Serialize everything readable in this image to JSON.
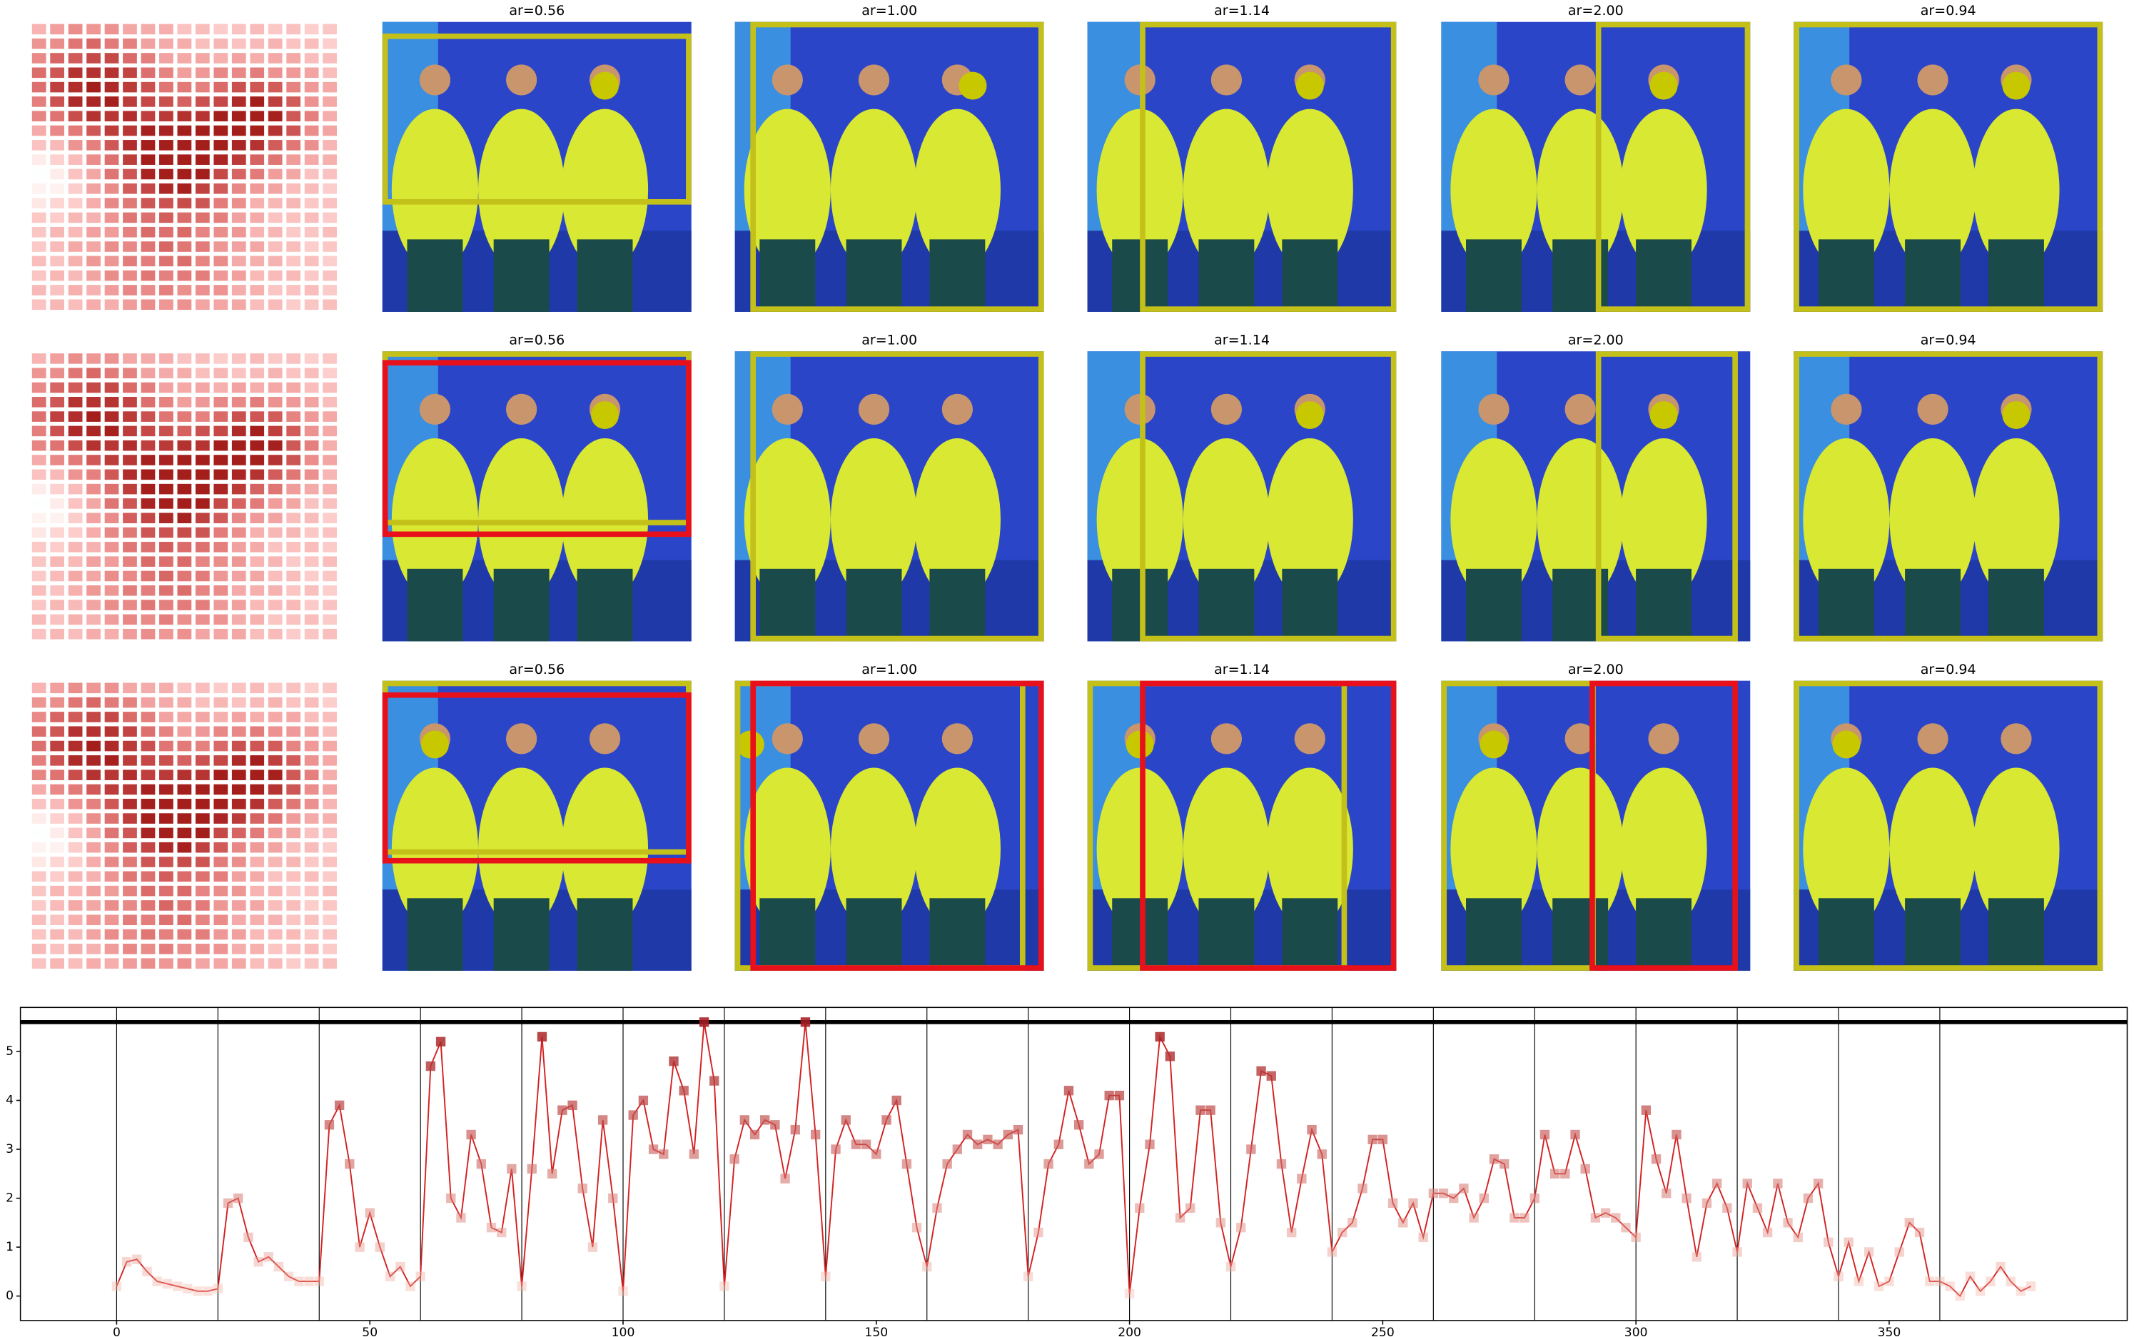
{
  "panels": {
    "titles": [
      [
        "ar=0.56",
        "ar=1.00",
        "ar=1.14",
        "ar=2.00",
        "ar=0.94"
      ],
      [
        "ar=0.56",
        "ar=1.00",
        "ar=1.14",
        "ar=2.00",
        "ar=0.94"
      ],
      [
        "ar=0.56",
        "ar=1.00",
        "ar=1.14",
        "ar=2.00",
        "ar=0.94"
      ]
    ]
  },
  "chart_data": {
    "type": "line",
    "color": "#d42020",
    "x": [
      0,
      2,
      4,
      6,
      8,
      10,
      12,
      14,
      16,
      18,
      20,
      22,
      24,
      26,
      28,
      30,
      32,
      34,
      36,
      38,
      40,
      42,
      44,
      46,
      48,
      50,
      52,
      54,
      56,
      58,
      60,
      62,
      64,
      66,
      68,
      70,
      72,
      74,
      76,
      78,
      80,
      82,
      84,
      86,
      88,
      90,
      92,
      94,
      96,
      98,
      100,
      102,
      104,
      106,
      108,
      110,
      112,
      114,
      116,
      118,
      120,
      122,
      124,
      126,
      128,
      130,
      132,
      134,
      136,
      138,
      140,
      142,
      144,
      146,
      148,
      150,
      152,
      154,
      156,
      158,
      160,
      162,
      164,
      166,
      168,
      170,
      172,
      174,
      176,
      178,
      180,
      182,
      184,
      186,
      188,
      190,
      192,
      194,
      196,
      198,
      200,
      202,
      204,
      206,
      208,
      210,
      212,
      214,
      216,
      218,
      220,
      222,
      224,
      226,
      228,
      230,
      232,
      234,
      236,
      238,
      240,
      242,
      244,
      246,
      248,
      250,
      252,
      254,
      256,
      258,
      260,
      262,
      264,
      266,
      268,
      270,
      272,
      274,
      276,
      278,
      280,
      282,
      284,
      286,
      288,
      290,
      292,
      294,
      296,
      298,
      300,
      302,
      304,
      306,
      308,
      310,
      312,
      314,
      316,
      318,
      320,
      322,
      324,
      326,
      328,
      330,
      332,
      334,
      336,
      338,
      340,
      342,
      344,
      346,
      348,
      350,
      352,
      354,
      356,
      358,
      360,
      362,
      364,
      366,
      368,
      370,
      372,
      374,
      376,
      378
    ],
    "values": [
      0.2,
      0.7,
      0.75,
      0.5,
      0.3,
      0.25,
      0.2,
      0.15,
      0.1,
      0.1,
      0.15,
      1.9,
      2.0,
      1.2,
      0.7,
      0.8,
      0.6,
      0.4,
      0.3,
      0.3,
      0.3,
      3.5,
      3.9,
      2.7,
      1.0,
      1.7,
      1.0,
      0.4,
      0.6,
      0.2,
      0.4,
      4.7,
      5.2,
      2.0,
      1.6,
      3.3,
      2.7,
      1.4,
      1.3,
      2.6,
      0.2,
      2.6,
      5.3,
      2.5,
      3.8,
      3.9,
      2.2,
      1.0,
      3.6,
      2.0,
      0.1,
      3.7,
      4.0,
      3.0,
      2.9,
      4.8,
      4.2,
      2.9,
      5.6,
      4.4,
      0.2,
      2.8,
      3.6,
      3.3,
      3.6,
      3.5,
      2.4,
      3.4,
      5.6,
      3.3,
      0.4,
      3.0,
      3.6,
      3.1,
      3.1,
      2.9,
      3.6,
      4.0,
      2.7,
      1.4,
      0.6,
      1.8,
      2.7,
      3.0,
      3.3,
      3.1,
      3.2,
      3.1,
      3.3,
      3.4,
      0.4,
      1.3,
      2.7,
      3.1,
      4.2,
      3.5,
      2.7,
      2.9,
      4.1,
      4.1,
      0.05,
      1.8,
      3.1,
      5.3,
      4.9,
      1.6,
      1.8,
      3.8,
      3.8,
      1.5,
      0.6,
      1.4,
      3.0,
      4.6,
      4.5,
      2.7,
      1.3,
      2.4,
      3.4,
      2.9,
      0.9,
      1.3,
      1.5,
      2.2,
      3.2,
      3.2,
      1.9,
      1.5,
      1.9,
      1.2,
      2.1,
      2.1,
      2.0,
      2.2,
      1.6,
      2.0,
      2.8,
      2.7,
      1.6,
      1.6,
      2.0,
      3.3,
      2.5,
      2.5,
      3.3,
      2.6,
      1.6,
      1.7,
      1.6,
      1.4,
      1.2,
      3.8,
      2.8,
      2.1,
      3.3,
      2.0,
      0.8,
      1.9,
      2.3,
      1.8,
      0.9,
      2.3,
      1.8,
      1.3,
      2.3,
      1.5,
      1.2,
      2.0,
      2.3,
      1.1,
      0.4,
      1.1,
      0.3,
      0.9,
      0.2,
      0.3,
      0.9,
      1.5,
      1.3,
      0.3,
      0.3,
      0.2,
      0.0,
      0.4,
      0.1,
      0.3,
      0.6,
      0.3,
      0.1,
      0.2
    ],
    "xlim": [
      -19,
      397
    ],
    "xticks": [
      0,
      50,
      100,
      150,
      200,
      250,
      300,
      350
    ],
    "ylim": [
      -0.5,
      5.9
    ],
    "yticks": [
      0,
      1,
      2,
      3,
      4,
      5
    ],
    "vlines": [
      0,
      20,
      40,
      60,
      80,
      100,
      120,
      140,
      160,
      180,
      200,
      220,
      240,
      260,
      280,
      300,
      320,
      340,
      360
    ],
    "hline": 5.6
  }
}
